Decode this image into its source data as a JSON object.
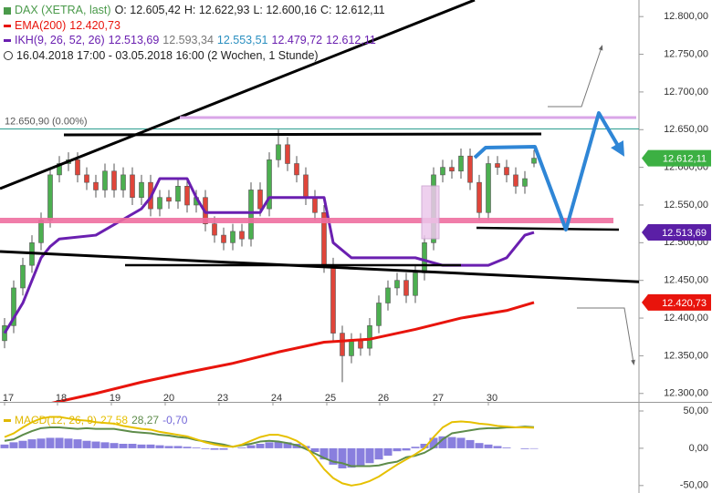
{
  "chart_data": [
    {
      "type": "candlestick",
      "symbol": "DAX (XETRA, last)",
      "symbol_color": "#4a9a4a",
      "ohlc_labels": [
        "O: 12.605,42",
        "H: 12.622,93",
        "L: 12.600,16",
        "C: 12.612,11"
      ],
      "period": "16.04.2018 17:00 - 03.05.2018 16:00 (2 Wochen, 1 Stunde)",
      "open": [
        12370,
        12390,
        12440,
        12470,
        12500,
        12530,
        12590,
        12605,
        12610,
        12590,
        12580,
        12570,
        12595,
        12570,
        12590,
        12560,
        12580,
        12545,
        12560,
        12555,
        12575,
        12550,
        12560,
        12525,
        12510,
        12500,
        12515,
        12505,
        12570,
        12545,
        12610,
        12630,
        12605,
        12590,
        12560,
        12540,
        12470,
        12380,
        12350,
        12370,
        12360,
        12390,
        12420,
        12440,
        12450,
        12430,
        12460,
        12500,
        12590,
        12600,
        12595,
        12615,
        12580,
        12540,
        12605,
        12600,
        12590,
        12575,
        12605.42
      ],
      "high": [
        12400,
        12450,
        12480,
        12510,
        12540,
        12600,
        12615,
        12620,
        12620,
        12600,
        12590,
        12605,
        12605,
        12600,
        12600,
        12590,
        12590,
        12570,
        12570,
        12585,
        12585,
        12570,
        12570,
        12535,
        12520,
        12525,
        12525,
        12580,
        12580,
        12620,
        12650,
        12640,
        12615,
        12600,
        12570,
        12550,
        12480,
        12390,
        12380,
        12380,
        12400,
        12430,
        12450,
        12460,
        12460,
        12470,
        12510,
        12600,
        12610,
        12610,
        12625,
        12625,
        12590,
        12615,
        12615,
        12610,
        12600,
        12595,
        12622.93
      ],
      "low": [
        12360,
        12380,
        12430,
        12460,
        12490,
        12520,
        12580,
        12595,
        12580,
        12570,
        12560,
        12560,
        12560,
        12560,
        12550,
        12550,
        12535,
        12535,
        12545,
        12545,
        12540,
        12540,
        12515,
        12500,
        12490,
        12490,
        12495,
        12495,
        12535,
        12535,
        12600,
        12595,
        12580,
        12550,
        12530,
        12460,
        12370,
        12315,
        12340,
        12350,
        12350,
        12380,
        12410,
        12430,
        12420,
        12420,
        12450,
        12490,
        12580,
        12585,
        12585,
        12570,
        12530,
        12530,
        12590,
        12580,
        12565,
        12565,
        12600.16
      ],
      "close": [
        12390,
        12440,
        12470,
        12500,
        12530,
        12590,
        12605,
        12610,
        12590,
        12580,
        12570,
        12595,
        12570,
        12590,
        12560,
        12580,
        12545,
        12560,
        12555,
        12575,
        12550,
        12560,
        12525,
        12510,
        12500,
        12515,
        12505,
        12570,
        12545,
        12610,
        12630,
        12605,
        12590,
        12560,
        12540,
        12470,
        12380,
        12350,
        12370,
        12360,
        12390,
        12420,
        12440,
        12450,
        12430,
        12460,
        12500,
        12590,
        12600,
        12595,
        12615,
        12580,
        12540,
        12605,
        12600,
        12590,
        12575,
        12585,
        12612.11
      ],
      "up_color": "#4caf50",
      "down_color": "#e0453a",
      "series": [
        {
          "name": "EMA(200)",
          "color": "#e8140c",
          "x": [
            4,
            10,
            15,
            20,
            25,
            30,
            35,
            40,
            45,
            50,
            55,
            58
          ],
          "values": [
            12284,
            12300,
            12315,
            12328,
            12340,
            12355,
            12368,
            12372,
            12385,
            12400,
            12410,
            12420.73
          ],
          "legend_values": [
            {
              "text": "12.420,73",
              "color": "#e8140c"
            }
          ]
        },
        {
          "name": "IKH(9, 26, 52, 26)",
          "color": "#6a1fb0",
          "x": [
            0,
            2,
            4,
            5,
            6,
            10,
            15,
            16,
            17,
            20,
            21,
            22,
            23,
            28,
            29,
            35,
            36,
            38,
            45,
            48,
            53,
            55,
            57,
            58
          ],
          "values": [
            12380,
            12420,
            12480,
            12495,
            12505,
            12510,
            12545,
            12560,
            12585,
            12585,
            12560,
            12540,
            12540,
            12540,
            12560,
            12560,
            12500,
            12480,
            12480,
            12470,
            12470,
            12480,
            12510,
            12513.69
          ],
          "legend_values": [
            {
              "text": "12.513,69",
              "color": "#6a1fb0"
            },
            {
              "text": "12.593,34",
              "color": "#777777"
            },
            {
              "text": "12.553,51",
              "color": "#2a8fc0"
            },
            {
              "text": "12.479,72",
              "color": "#6a1fb0"
            },
            {
              "text": "12.612,11",
              "color": "#6a1fb0"
            }
          ]
        }
      ],
      "reference_line": {
        "value": 12650.9,
        "label": "12.650,90 (0.00%)",
        "color": "#2a9d8f"
      },
      "price_tags": [
        {
          "value": 12612.11,
          "label": "12.612,11",
          "color": "#3cb043"
        },
        {
          "value": 12513.69,
          "label": "12.513,69",
          "color": "#5b1fa6"
        },
        {
          "value": 12420.73,
          "label": "12.420,73",
          "color": "#e8140c"
        }
      ],
      "xlim": [
        -0.5,
        69.5
      ],
      "xticks": [
        {
          "value": 0,
          "label": "17"
        },
        {
          "value": 5.8,
          "label": "18"
        },
        {
          "value": 11.7,
          "label": "19"
        },
        {
          "value": 17.6,
          "label": "20"
        },
        {
          "value": 23.5,
          "label": "23"
        },
        {
          "value": 29.4,
          "label": "24"
        },
        {
          "value": 35.3,
          "label": "25"
        },
        {
          "value": 41.1,
          "label": "26"
        },
        {
          "value": 47.1,
          "label": "27"
        },
        {
          "value": 53,
          "label": "30"
        }
      ],
      "ylim": [
        12284,
        12822
      ],
      "yticks": [
        {
          "value": 12300,
          "label": "12.300,00"
        },
        {
          "value": 12350,
          "label": "12.350,00"
        },
        {
          "value": 12400,
          "label": "12.400,00"
        },
        {
          "value": 12450,
          "label": "12.450,00"
        },
        {
          "value": 12500,
          "label": "12.500,00"
        },
        {
          "value": 12550,
          "label": "12.550,00"
        },
        {
          "value": 12600,
          "label": "12.600,00"
        },
        {
          "value": 12650,
          "label": "12.650,00"
        },
        {
          "value": 12700,
          "label": "12.700,00"
        },
        {
          "value": 12750,
          "label": "12.750,00"
        },
        {
          "value": 12800,
          "label": "12.800,00"
        }
      ]
    },
    {
      "type": "macd",
      "title": "MACD(12, 26, 9)",
      "title_color": "#e0b800",
      "macd": {
        "color": "#e6c000",
        "label": "27,58",
        "values": [
          15,
          20,
          28,
          35,
          40,
          42,
          42,
          40,
          38,
          37,
          35,
          34,
          33,
          30,
          28,
          26,
          25,
          22,
          20,
          18,
          16,
          12,
          8,
          5,
          3,
          2,
          5,
          10,
          15,
          18,
          18,
          15,
          10,
          2,
          -12,
          -28,
          -40,
          -47,
          -50,
          -48,
          -44,
          -38,
          -30,
          -22,
          -15,
          -8,
          0,
          15,
          28,
          35,
          36,
          35,
          33,
          32,
          30,
          29,
          28,
          28,
          27.58
        ]
      },
      "signal": {
        "color": "#5e8c4a",
        "label": "28,27",
        "values": [
          10,
          12,
          18,
          23,
          27,
          28,
          28,
          27,
          26,
          27,
          26,
          26,
          26,
          24,
          22,
          21,
          20,
          18,
          17,
          15,
          14,
          11,
          9,
          7,
          5,
          2,
          4,
          6,
          9,
          10,
          9,
          7,
          4,
          -1,
          -7,
          -13,
          -18,
          -20,
          -24,
          -24,
          -24,
          -23,
          -20,
          -18,
          -12,
          -10,
          -6,
          1,
          12,
          20,
          22,
          24,
          26,
          27,
          27,
          28,
          28,
          29,
          28.27
        ]
      },
      "histogram": {
        "color": "#7468d8",
        "label": "-0,70",
        "values": [
          5,
          8,
          10,
          12,
          13,
          14,
          14,
          13,
          12,
          10,
          9,
          8,
          7,
          6,
          6,
          5,
          5,
          4,
          3,
          3,
          2,
          1,
          -1,
          -2,
          -2,
          0,
          1,
          4,
          6,
          8,
          9,
          8,
          6,
          3,
          -5,
          -15,
          -22,
          -27,
          -26,
          -24,
          -20,
          -15,
          -10,
          -4,
          -3,
          2,
          6,
          14,
          16,
          15,
          14,
          11,
          7,
          5,
          3,
          1,
          0,
          -1,
          -0.7
        ]
      },
      "xlim": [
        -0.5,
        69.5
      ],
      "ylim": [
        -60,
        61
      ],
      "yticks": [
        {
          "value": 50,
          "label": "50,00"
        },
        {
          "value": 0,
          "label": "0,00"
        },
        {
          "value": -50,
          "label": "-50,00"
        }
      ]
    }
  ]
}
